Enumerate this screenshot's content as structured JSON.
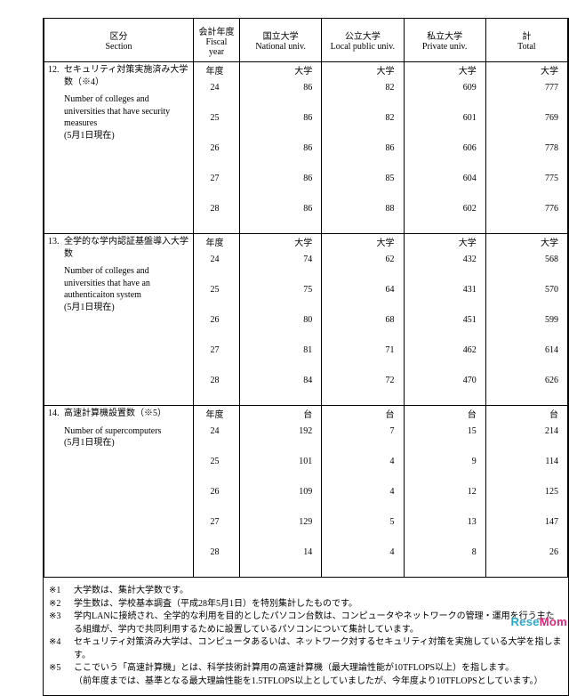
{
  "header": {
    "section_jp": "区分",
    "section_en": "Section",
    "year_jp": "会計年度",
    "year_en": "Fiscal year",
    "cols": [
      {
        "jp": "国立大学",
        "en": "National univ."
      },
      {
        "jp": "公立大学",
        "en": "Local public univ."
      },
      {
        "jp": "私立大学",
        "en": "Private univ."
      },
      {
        "jp": "計",
        "en": "Total"
      }
    ]
  },
  "rows": [
    {
      "num": "12.",
      "jp": "セキュリティ対策実施済み大学数（※4）",
      "en": "Number of colleges and universities that have security measures\n(5月1日現在)",
      "unit_year": "年度",
      "unit_val": "大学",
      "years": [
        "24",
        "25",
        "26",
        "27",
        "28"
      ],
      "data": [
        [
          "86",
          "82",
          "609",
          "777"
        ],
        [
          "86",
          "82",
          "601",
          "769"
        ],
        [
          "86",
          "86",
          "606",
          "778"
        ],
        [
          "86",
          "85",
          "604",
          "775"
        ],
        [
          "86",
          "88",
          "602",
          "776"
        ]
      ]
    },
    {
      "num": "13.",
      "jp": "全学的な学内認証基盤導入大学数",
      "en": "Number of colleges and universities that have an authenticaiton system\n(5月1日現在)",
      "unit_year": "年度",
      "unit_val": "大学",
      "years": [
        "24",
        "25",
        "26",
        "27",
        "28"
      ],
      "data": [
        [
          "74",
          "62",
          "432",
          "568"
        ],
        [
          "75",
          "64",
          "431",
          "570"
        ],
        [
          "80",
          "68",
          "451",
          "599"
        ],
        [
          "81",
          "71",
          "462",
          "614"
        ],
        [
          "84",
          "72",
          "470",
          "626"
        ]
      ]
    },
    {
      "num": "14.",
      "jp": "高速計算機設置数（※5）",
      "en": "Number of supercomputers\n(5月1日現在)",
      "unit_year": "年度",
      "unit_val": "台",
      "years": [
        "24",
        "25",
        "26",
        "27",
        "28"
      ],
      "data": [
        [
          "192",
          "7",
          "15",
          "214"
        ],
        [
          "101",
          "4",
          "9",
          "114"
        ],
        [
          "109",
          "4",
          "12",
          "125"
        ],
        [
          "129",
          "5",
          "13",
          "147"
        ],
        [
          "14",
          "4",
          "8",
          "26"
        ]
      ]
    }
  ],
  "notes": [
    {
      "tag": "※1",
      "txt": "大学数は、集計大学数です。"
    },
    {
      "tag": "※2",
      "txt": "学生数は、学校基本調査（平成28年5月1日）を特別集計したものです。"
    },
    {
      "tag": "※3",
      "txt": "学内LANに接続され、全学的な利用を目的としたパソコン台数は、コンピュータやネットワークの管理・運用を行う主たる組織が、学内で共同利用するために設置しているパソコンについて集計しています。"
    },
    {
      "tag": "※4",
      "txt": "セキュリティ対策済み大学は、コンピュータあるいは、ネットワーク対するセキュリティ対策を実施している大学を指します。"
    },
    {
      "tag": "※5",
      "txt": "ここでいう「高速計算機」とは、科学技術計算用の高速計算機（最大理論性能が10TFLOPS以上）を指します。\n（前年度までは、基準となる最大理論性能を1.5TFLOPS以上としていましたが、今年度より10TFLOPSとしています。）"
    }
  ],
  "watermark": {
    "re": "Rese",
    "mom": "Mom"
  }
}
